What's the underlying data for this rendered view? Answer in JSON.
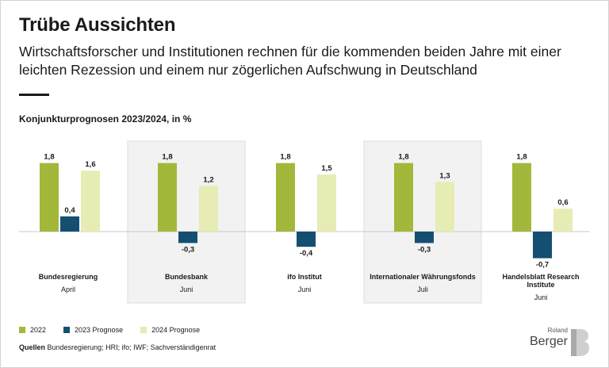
{
  "header": {
    "title": "Trübe Aussichten",
    "subtitle": "Wirtschaftsforscher und Institutionen rechnen für die kommenden beiden Jahre mit einer leichten Rezession und einem nur zögerlichen Aufschwung in Deutschland"
  },
  "chart_data": {
    "type": "bar",
    "title": "Konjunkturprognosen 2023/2024, in %",
    "categories": [
      {
        "name": "Bundesregierung",
        "date": "April",
        "highlight": false
      },
      {
        "name": "Bundesbank",
        "date": "Juni",
        "highlight": true
      },
      {
        "name": "ifo Institut",
        "date": "Juni",
        "highlight": false
      },
      {
        "name": "Internationaler Währungsfonds",
        "date": "Juli",
        "highlight": true
      },
      {
        "name": "Handelsblatt Research Institute",
        "date": "Juni",
        "highlight": false
      }
    ],
    "series": [
      {
        "name": "2022",
        "color": "#a2b83a",
        "values": [
          1.8,
          1.8,
          1.8,
          1.8,
          1.8
        ],
        "labels": [
          "1,8",
          "1,8",
          "1,8",
          "1,8",
          "1,8"
        ]
      },
      {
        "name": "2023 Prognose",
        "color": "#144f72",
        "values": [
          0.4,
          -0.3,
          -0.4,
          -0.3,
          -0.7
        ],
        "labels": [
          "0,4",
          "-0,3",
          "-0,4",
          "-0,3",
          "-0,7"
        ]
      },
      {
        "name": "2024 Prognose",
        "color": "#e6ecb4",
        "values": [
          1.6,
          1.2,
          1.5,
          1.3,
          0.6
        ],
        "labels": [
          "1,6",
          "1,2",
          "1,5",
          "1,3",
          "0,6"
        ]
      }
    ],
    "ylim": [
      -0.8,
      2.0
    ],
    "highlight_color": "#f2f2f2",
    "legend_position": "bottom-left"
  },
  "footer": {
    "sources_label": "Quellen",
    "sources_text": "Bundesregierung; HRI; ifo; IWF; Sachverständigenrat",
    "logo_small": "Roland",
    "logo_big": "Berger"
  }
}
